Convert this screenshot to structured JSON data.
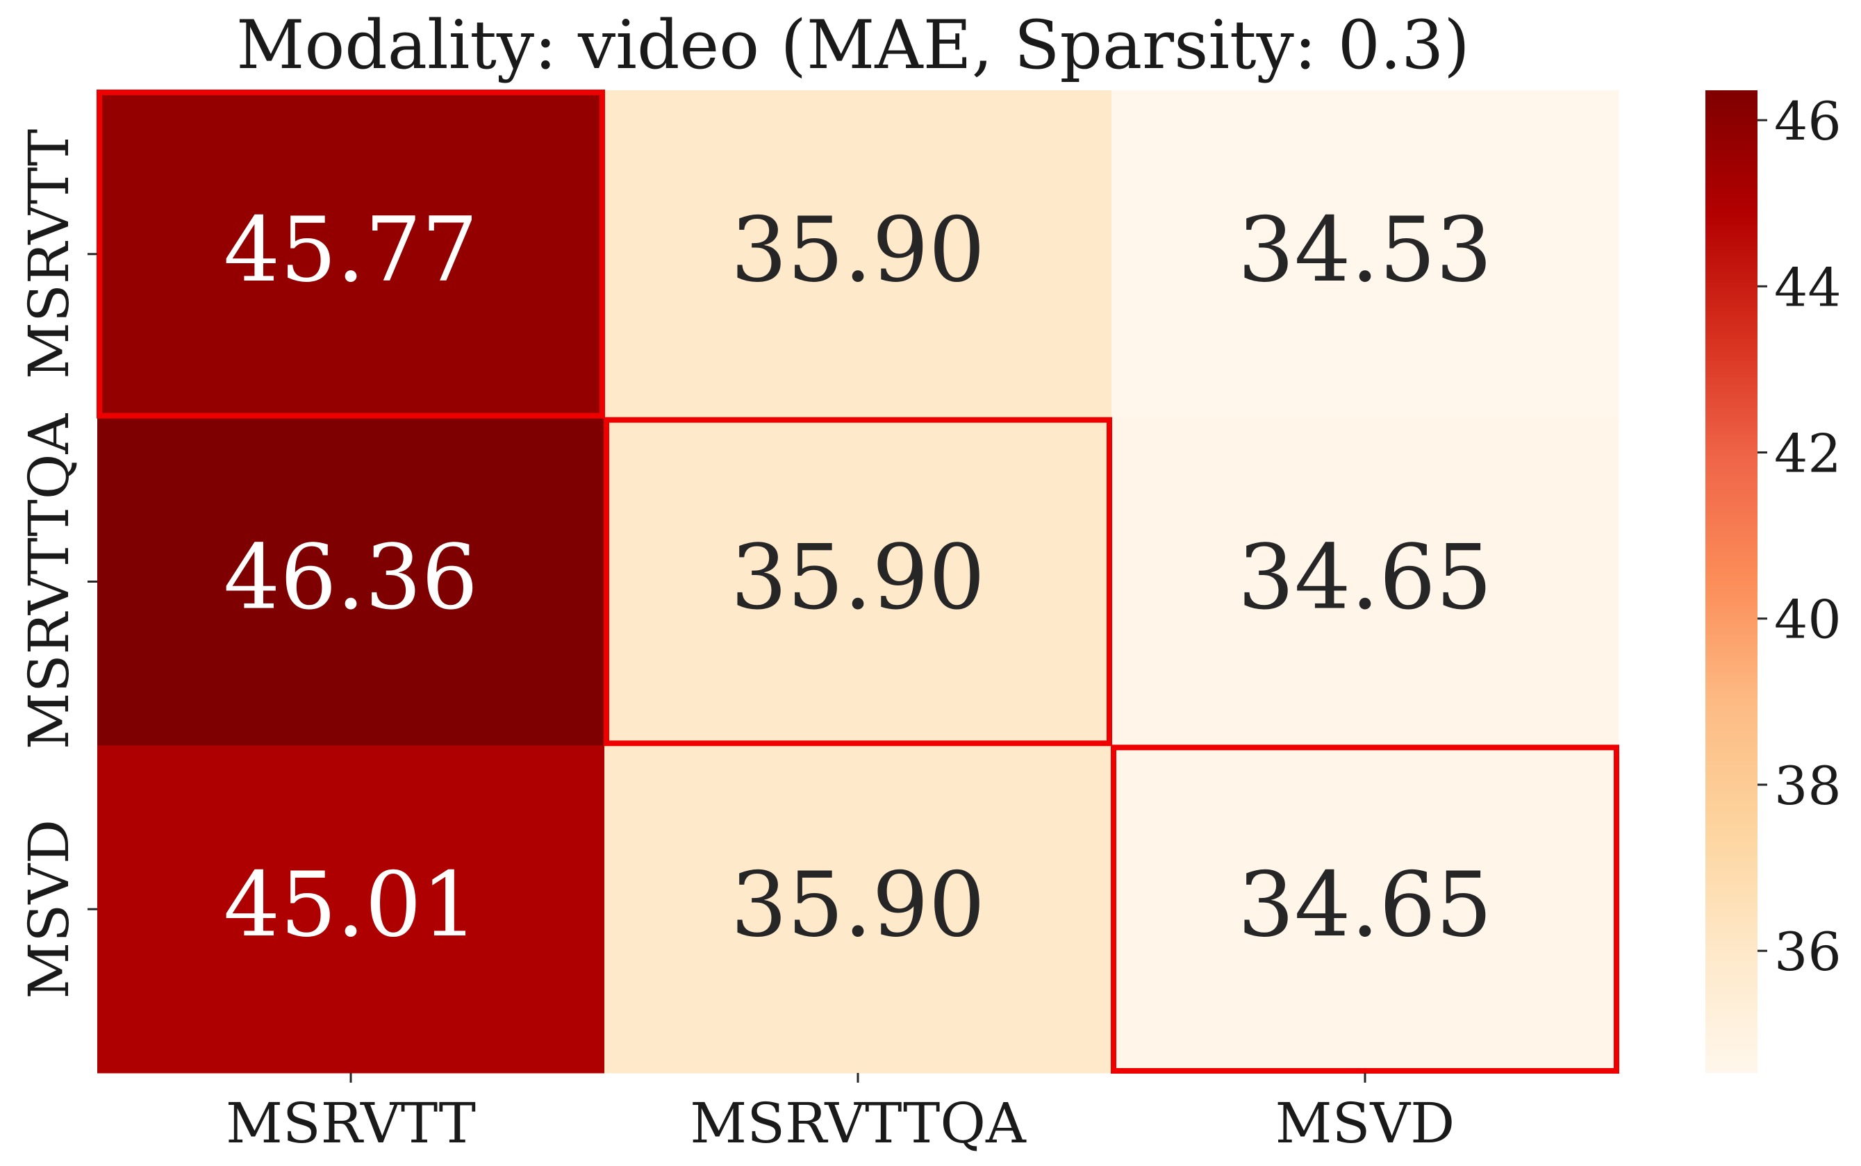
{
  "chart_data": {
    "type": "heatmap",
    "title": "Modality: video (MAE, Sparsity: 0.3)",
    "xlabel": "",
    "ylabel": "",
    "x_categories": [
      "MSRVTT",
      "MSRVTTQA",
      "MSVD"
    ],
    "y_categories": [
      "MSRVTT",
      "MSRVTTQA",
      "MSVD"
    ],
    "values": [
      [
        45.77,
        35.9,
        34.53
      ],
      [
        46.36,
        35.9,
        34.65
      ],
      [
        45.01,
        35.9,
        34.65
      ]
    ],
    "value_labels": [
      [
        "45.77",
        "35.90",
        "34.53"
      ],
      [
        "46.36",
        "35.90",
        "34.65"
      ],
      [
        "45.01",
        "35.90",
        "34.65"
      ]
    ],
    "highlighted_cells": [
      [
        0,
        0
      ],
      [
        1,
        1
      ],
      [
        2,
        2
      ]
    ],
    "highlight_color": "#ee0000",
    "colormap": "OrRd",
    "colorbar": {
      "min": 34.53,
      "max": 46.36,
      "ticks": [
        36,
        38,
        40,
        42,
        44,
        46
      ],
      "tick_labels": [
        "36",
        "38",
        "40",
        "42",
        "44",
        "46"
      ]
    }
  }
}
